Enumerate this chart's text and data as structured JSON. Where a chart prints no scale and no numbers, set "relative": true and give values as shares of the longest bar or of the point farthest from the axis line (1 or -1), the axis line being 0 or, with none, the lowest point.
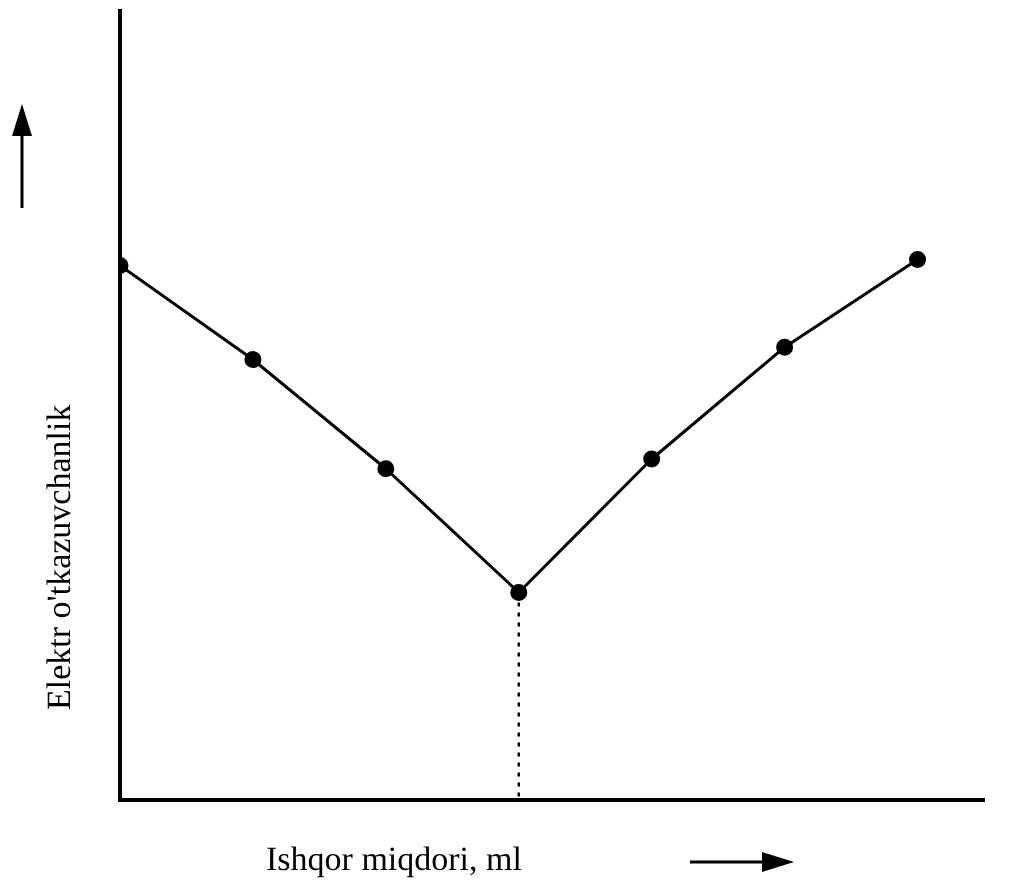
{
  "chart_data": {
    "type": "line",
    "xlabel": "Ishqor miqdori, ml",
    "ylabel": "Elektr o'tkazuvchanlik",
    "relative": true,
    "categories": [
      null,
      null,
      null,
      null,
      null,
      null,
      null
    ],
    "series": [
      {
        "color": "#000000",
        "values": [
          0.989,
          0.815,
          0.613,
          0.384,
          0.631,
          0.838,
          1
        ]
      }
    ],
    "marker": "circle",
    "line_style": "solid",
    "grid": false,
    "legend": false
  }
}
